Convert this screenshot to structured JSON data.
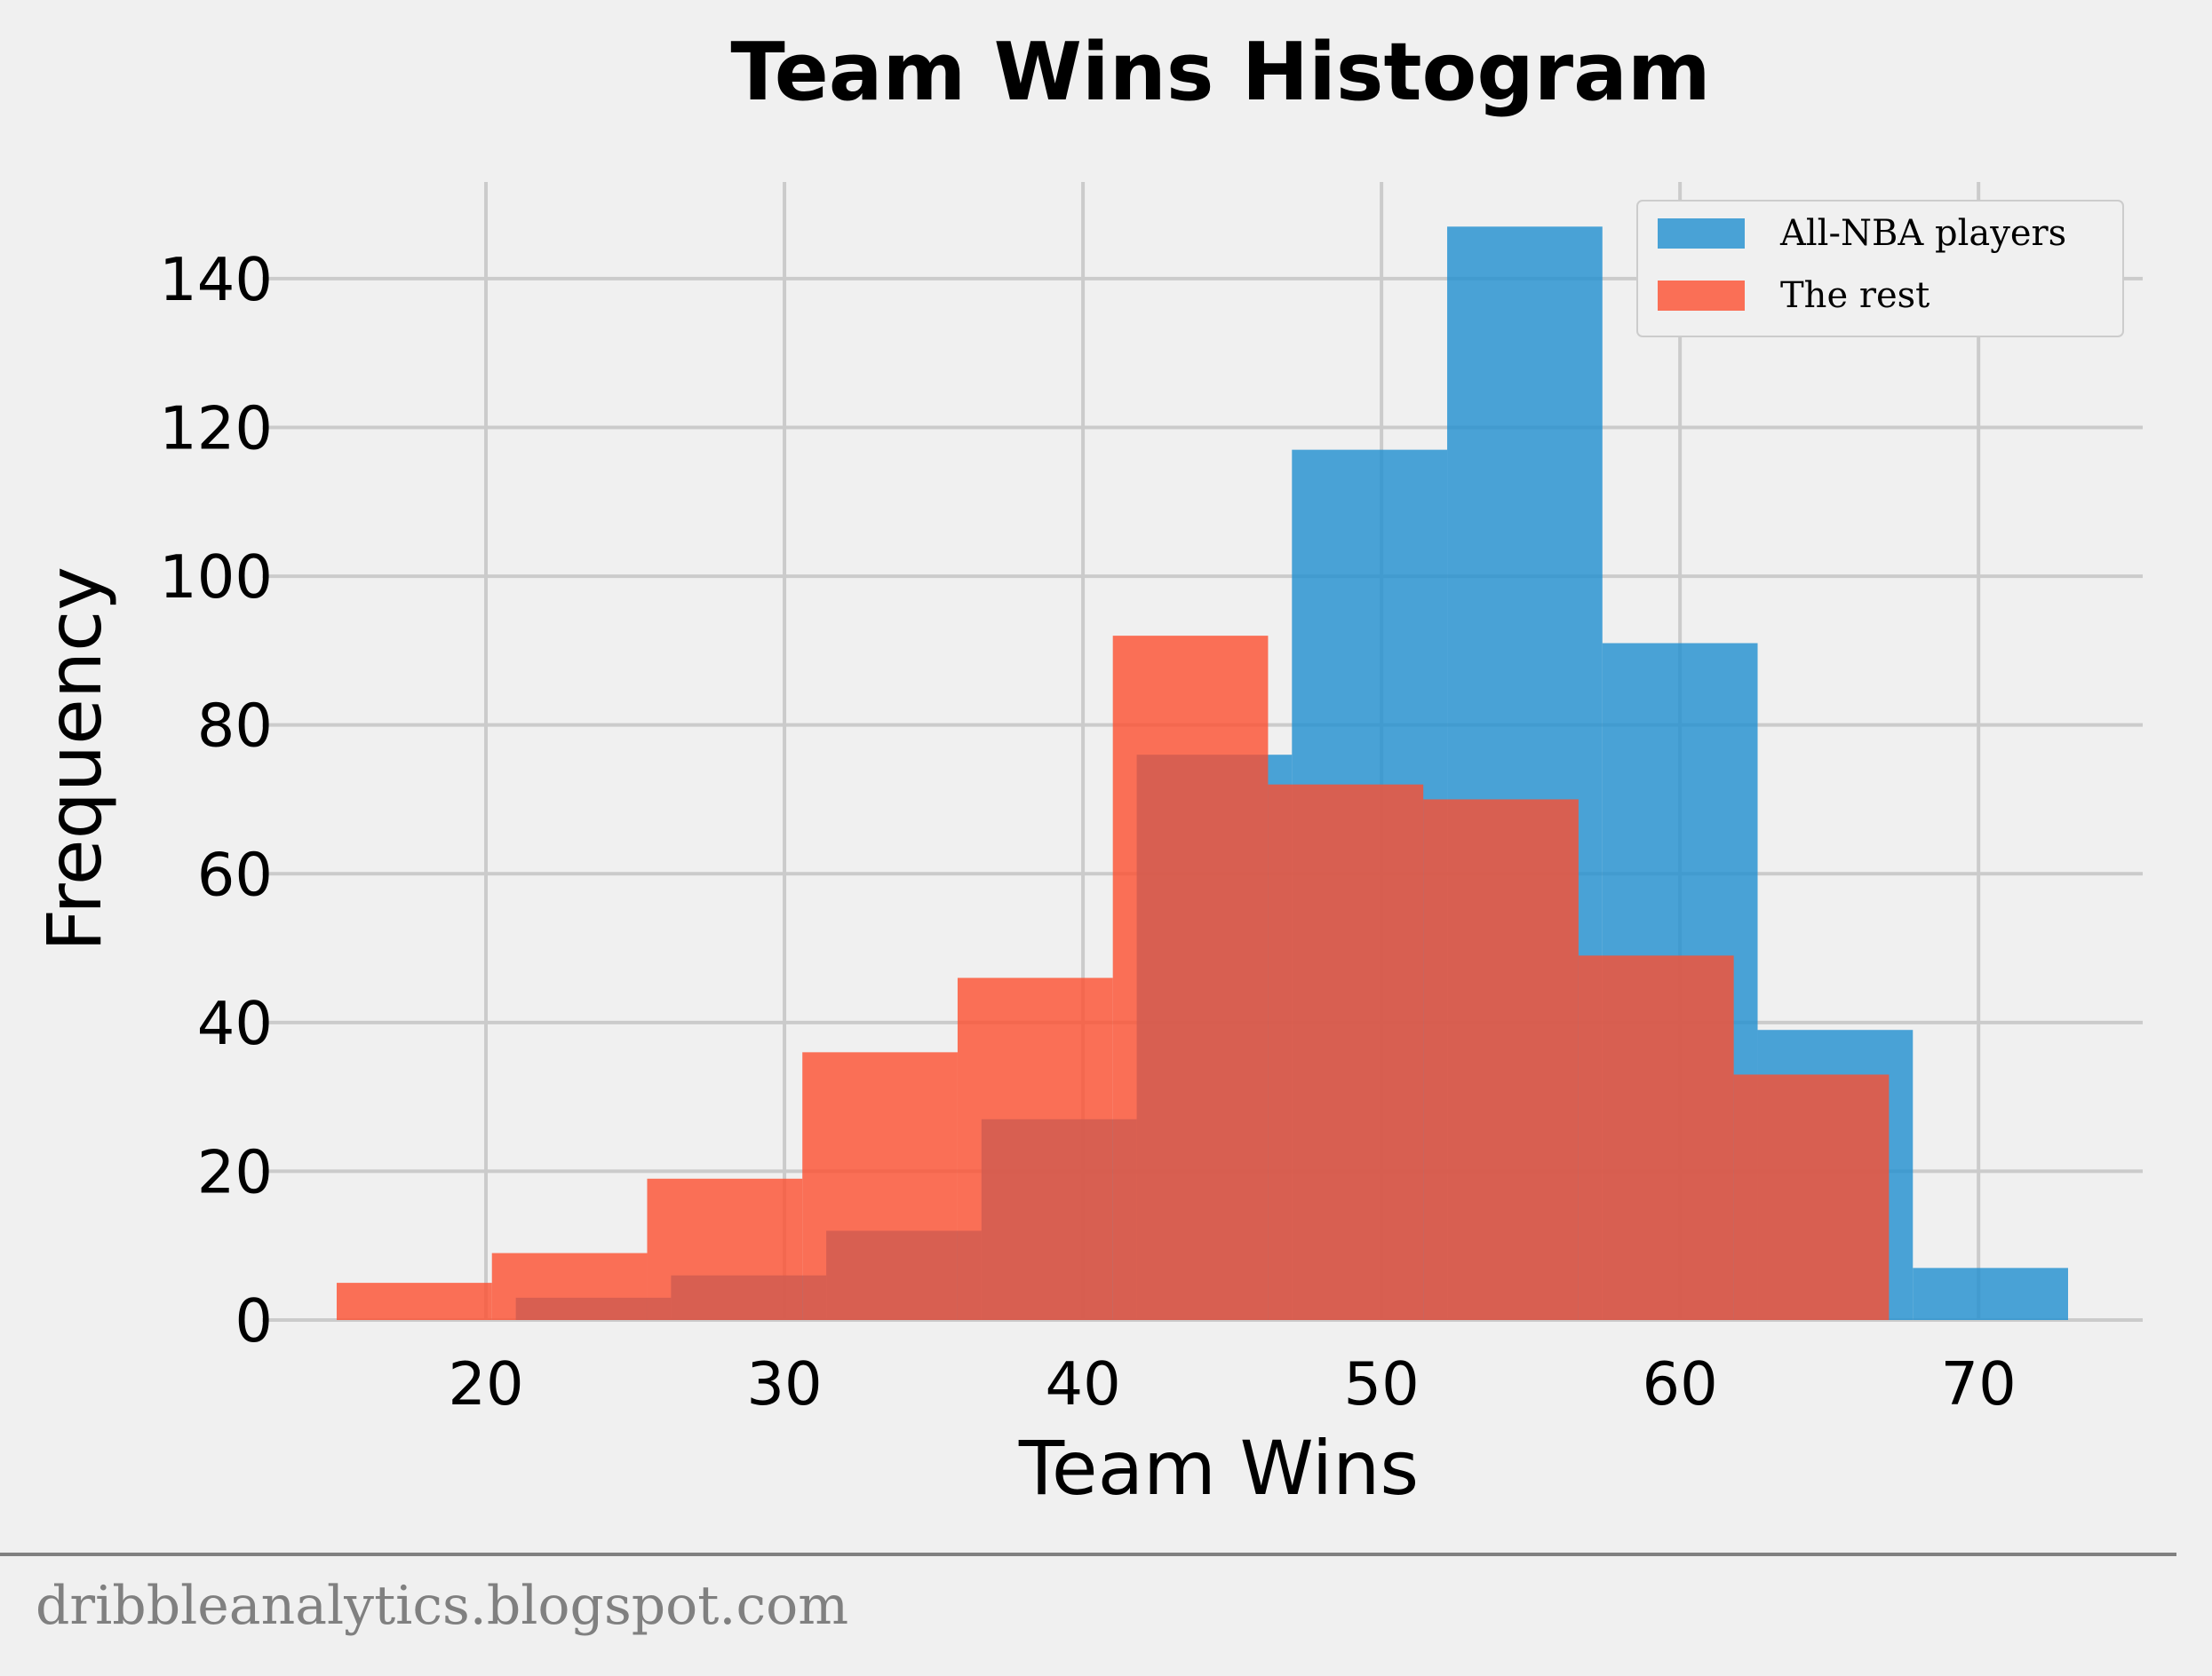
{
  "chart_data": {
    "type": "bar",
    "title": "Team Wins Histogram",
    "xlabel": "Team Wins",
    "ylabel": "Frequency",
    "xlim": [
      12.5,
      75.5
    ],
    "ylim": [
      0,
      153
    ],
    "xticks": [
      20,
      30,
      40,
      50,
      60,
      70
    ],
    "yticks": [
      0,
      20,
      40,
      60,
      80,
      100,
      120,
      140
    ],
    "grid": true,
    "legend_position": "top-right",
    "series": [
      {
        "name": "All-NBA players",
        "color": "#1f8fd0",
        "bins": [
          {
            "x0": 21.0,
            "x1": 26.2,
            "value": 3
          },
          {
            "x0": 26.2,
            "x1": 31.4,
            "value": 6
          },
          {
            "x0": 31.4,
            "x1": 36.6,
            "value": 12
          },
          {
            "x0": 36.6,
            "x1": 41.8,
            "value": 27
          },
          {
            "x0": 41.8,
            "x1": 47.0,
            "value": 76
          },
          {
            "x0": 47.0,
            "x1": 52.2,
            "value": 117
          },
          {
            "x0": 52.2,
            "x1": 57.4,
            "value": 147
          },
          {
            "x0": 57.4,
            "x1": 62.6,
            "value": 91
          },
          {
            "x0": 62.6,
            "x1": 67.8,
            "value": 39
          },
          {
            "x0": 67.8,
            "x1": 73.0,
            "value": 7
          }
        ]
      },
      {
        "name": "The rest",
        "color": "#fc4f30",
        "bins": [
          {
            "x0": 15.0,
            "x1": 20.2,
            "value": 5
          },
          {
            "x0": 20.2,
            "x1": 25.4,
            "value": 9
          },
          {
            "x0": 25.4,
            "x1": 30.6,
            "value": 19
          },
          {
            "x0": 30.6,
            "x1": 35.8,
            "value": 36
          },
          {
            "x0": 35.8,
            "x1": 41.0,
            "value": 46
          },
          {
            "x0": 41.0,
            "x1": 46.2,
            "value": 92
          },
          {
            "x0": 46.2,
            "x1": 51.4,
            "value": 72
          },
          {
            "x0": 51.4,
            "x1": 56.6,
            "value": 70
          },
          {
            "x0": 56.6,
            "x1": 61.8,
            "value": 49
          },
          {
            "x0": 61.8,
            "x1": 67.0,
            "value": 33
          }
        ]
      }
    ]
  },
  "footer": {
    "text": "dribbleanalytics.blogspot.com"
  },
  "colors": {
    "background": "#f0f0f0",
    "grid": "#cbcbcb",
    "footer_text": "#808080",
    "footer_rule": "#808080"
  }
}
